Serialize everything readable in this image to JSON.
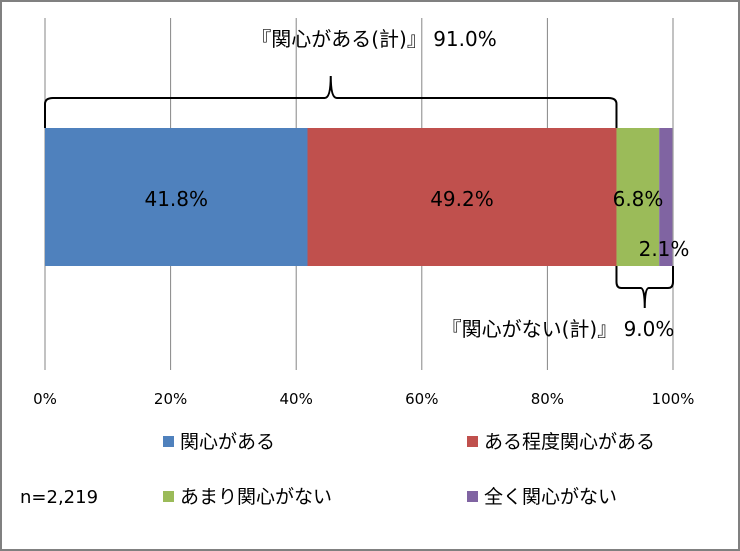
{
  "chart_data": {
    "type": "bar",
    "orientation": "horizontal",
    "stacked": true,
    "series": [
      {
        "name": "関心がある",
        "values": [
          41.8
        ],
        "label": "41.8%",
        "color": "#4f81bd"
      },
      {
        "name": "ある程度関心がある",
        "values": [
          49.2
        ],
        "label": "49.2%",
        "color": "#c0504d"
      },
      {
        "name": "あまり関心がない",
        "values": [
          6.8
        ],
        "label": "6.8%",
        "color": "#9bbb59"
      },
      {
        "name": "全く関心がない",
        "values": [
          2.1
        ],
        "label": "2.1%",
        "color": "#8064a2"
      }
    ],
    "xlim": [
      0,
      100
    ],
    "x_ticks": [
      "0%",
      "20%",
      "40%",
      "60%",
      "80%",
      "100%"
    ],
    "grid": true,
    "legend_position": "bottom",
    "annotations": {
      "interested_total": "『関心がある(計)』 91.0%",
      "not_interested_total": "『関心がない(計)』 9.0%"
    },
    "sample_size": "n=2,219"
  }
}
